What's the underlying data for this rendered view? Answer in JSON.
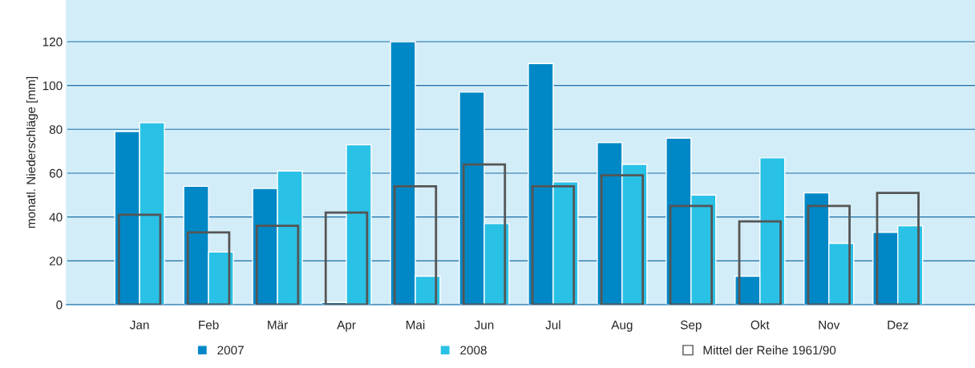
{
  "chart_data": {
    "type": "bar",
    "ylabel": "monatl. Niederschläge [mm]",
    "categories": [
      "Jan",
      "Feb",
      "Mär",
      "Apr",
      "Mai",
      "Jun",
      "Jul",
      "Aug",
      "Sep",
      "Okt",
      "Nov",
      "Dez"
    ],
    "series": [
      {
        "name": "2007",
        "color": "#0088c6",
        "values": [
          79,
          54,
          53,
          1,
          120,
          97,
          110,
          74,
          76,
          13,
          51,
          33
        ]
      },
      {
        "name": "2008",
        "color": "#2ac1e6",
        "values": [
          83,
          24,
          61,
          73,
          13,
          37,
          56,
          64,
          50,
          67,
          28,
          36
        ]
      },
      {
        "name": "Mittel der Reihe 1961/90",
        "color": "#555555",
        "line_style": "solid",
        "values": [
          41,
          33,
          36,
          42,
          54,
          64,
          54,
          59,
          45,
          38,
          45,
          51
        ]
      }
    ],
    "ylim": [
      0,
      139
    ],
    "yticks": [
      0,
      20,
      40,
      60,
      80,
      100,
      120
    ],
    "grid": "y",
    "legend": "bottom"
  }
}
